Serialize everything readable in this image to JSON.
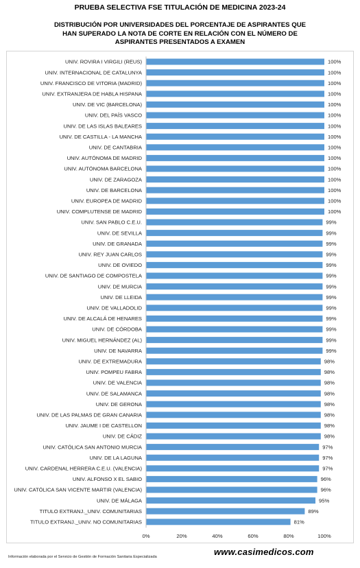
{
  "page": {
    "footnote": "Información elaborada por el Servicio de Gestión de Formación Sanitaria Especializada",
    "website": "www.casimedicos.com"
  },
  "chart_data": {
    "type": "bar",
    "orientation": "horizontal",
    "title": "PRUEBA SELECTIVA FSE TITULACIÓN DE MEDICINA 2023-24",
    "subtitle": "DISTRIBUCIÓN POR UNIVERSIDADES DEL PORCENTAJE DE ASPIRANTES QUE HAN SUPERADO LA NOTA DE CORTE EN RELACIÓN CON EL NÚMERO DE ASPIRANTES PRESENTADOS A EXAMEN",
    "xlim": [
      0,
      100
    ],
    "x_ticks": [
      "0%",
      "20%",
      "40%",
      "60%",
      "80%",
      "100%"
    ],
    "grid": false,
    "bar_color": "#5b9bd5",
    "categories": [
      "UNIV. ROVIRA I VIRGILI (REUS)",
      "UNIV. INTERNACIONAL DE CATALUNYA",
      "UNIV. FRANCISCO DE VITORIA (MADRID)",
      "UNIV. EXTRANJERA DE HABLA HISPANA",
      "UNIV. DE VIC (BARCELONA)",
      "UNIV. DEL PAÍS VASCO",
      "UNIV. DE LAS ISLAS BALEARES",
      "UNIV. DE CASTILLA - LA MANCHA",
      "UNIV. DE CANTABRIA",
      "UNIV. AUTÓNOMA DE MADRID",
      "UNIV. AUTÓNOMA BARCELONA",
      "UNIV. DE ZARAGOZA",
      "UNIV. DE BARCELONA",
      "UNIV. EUROPEA DE MADRID",
      "UNIV. COMPLUTENSE DE MADRID",
      "UNIV. SAN PABLO C.E.U.",
      "UNIV. DE SEVILLA",
      "UNIV. DE GRANADA",
      "UNIV. REY JUAN CARLOS",
      "UNIV. DE OVIEDO",
      "UNIV. DE SANTIAGO DE COMPOSTELA",
      "UNIV. DE MURCIA",
      "UNIV. DE LLEIDA",
      "UNIV. DE VALLADOLID",
      "UNIV. DE ALCALÁ DE HENARES",
      "UNIV. DE CÓRDOBA",
      "UNIV. MIGUEL HERNÁNDEZ (AL)",
      "UNIV. DE NAVARRA",
      "UNIV. DE EXTREMADURA",
      "UNIV. POMPEU FABRA",
      "UNIV. DE VALENCIA",
      "UNIV. DE SALAMANCA",
      "UNIV. DE GERONA",
      "UNIV. DE LAS PALMAS DE GRAN CANARIA",
      "UNIV. JAUME I DE CASTELLON",
      "UNIV. DE CÁDIZ",
      "UNIV. CATÓLICA SAN ANTONIO MURCIA",
      "UNIV. DE LA LAGUNA",
      "UNIV. CARDENAL HERRERA C.E.U. (VALENCIA)",
      "UNIV. ALFONSO X EL SABIO",
      "UNIV. CATÓLICA SAN VICENTE MARTIR (VALENCIA)",
      "UNIV. DE MÁLAGA",
      "TITULO EXTRANJ._UNIV. COMUNITARIAS",
      "TITULO EXTRANJ._UNIV. NO COMUNITARIAS"
    ],
    "values": [
      100,
      100,
      100,
      100,
      100,
      100,
      100,
      100,
      100,
      100,
      100,
      100,
      100,
      100,
      100,
      99,
      99,
      99,
      99,
      99,
      99,
      99,
      99,
      99,
      99,
      99,
      99,
      99,
      98,
      98,
      98,
      98,
      98,
      98,
      98,
      98,
      97,
      97,
      97,
      96,
      96,
      95,
      89,
      81
    ],
    "value_labels": [
      "100%",
      "100%",
      "100%",
      "100%",
      "100%",
      "100%",
      "100%",
      "100%",
      "100%",
      "100%",
      "100%",
      "100%",
      "100%",
      "100%",
      "100%",
      "99%",
      "99%",
      "99%",
      "99%",
      "99%",
      "99%",
      "99%",
      "99%",
      "99%",
      "99%",
      "99%",
      "99%",
      "99%",
      "98%",
      "98%",
      "98%",
      "98%",
      "98%",
      "98%",
      "98%",
      "98%",
      "97%",
      "97%",
      "97%",
      "96%",
      "96%",
      "95%",
      "89%",
      "81%"
    ]
  }
}
